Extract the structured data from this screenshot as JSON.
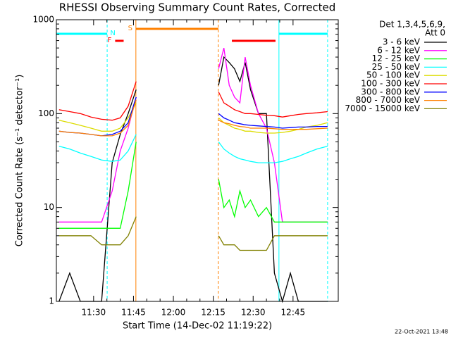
{
  "chart_data": {
    "type": "line",
    "title": "RHESSI Observing Summary Count Rates, Corrected",
    "xlabel": "Start Time (14-Dec-02 11:19:22)",
    "ylabel": "Corrected Count Rate (s⁻¹ detector⁻¹)",
    "legend_title": [
      "Det 1,3,4,5,6,9,",
      "Att 0"
    ],
    "footer": "22-Oct-2021 13:48",
    "log_y": true,
    "xlim": [
      676,
      782
    ],
    "xticks": [
      {
        "value": 690,
        "label": "11:30"
      },
      {
        "value": 705,
        "label": "11:45"
      },
      {
        "value": 720,
        "label": "12:00"
      },
      {
        "value": 735,
        "label": "12:15"
      },
      {
        "value": 750,
        "label": "12:30"
      },
      {
        "value": 765,
        "label": "12:45"
      }
    ],
    "ylim": [
      1,
      1000
    ],
    "yticks": [
      1,
      10,
      100,
      1000
    ],
    "x": [
      677,
      681,
      685,
      689,
      693,
      697,
      700,
      703,
      706,
      720,
      737,
      739,
      741,
      743,
      745,
      747,
      749,
      752,
      755,
      758,
      761,
      764,
      767,
      770,
      774,
      778
    ],
    "series": [
      {
        "name": "3 - 6 keV",
        "color": "#000000",
        "values": [
          1,
          2,
          1,
          1,
          1,
          30,
          60,
          100,
          180,
          null,
          200,
          400,
          350,
          300,
          220,
          350,
          180,
          100,
          100,
          2,
          1,
          2,
          1,
          1,
          1,
          1
        ]
      },
      {
        "name": "6 - 12 keV",
        "color": "#ff00ff",
        "values": [
          7,
          7,
          7,
          7,
          7,
          15,
          40,
          70,
          150,
          null,
          300,
          500,
          200,
          150,
          130,
          400,
          200,
          100,
          70,
          30,
          7,
          7,
          7,
          7,
          7,
          7
        ]
      },
      {
        "name": "12 - 25 keV",
        "color": "#00ff00",
        "values": [
          6,
          6,
          6,
          6,
          6,
          6,
          6,
          15,
          50,
          null,
          20,
          10,
          12,
          8,
          15,
          10,
          12,
          8,
          10,
          7,
          7,
          7,
          7,
          7,
          7,
          7
        ]
      },
      {
        "name": "25 - 50 keV",
        "color": "#00ffff",
        "values": [
          45,
          42,
          38,
          35,
          32,
          31,
          32,
          40,
          60,
          null,
          50,
          42,
          38,
          35,
          33,
          32,
          31,
          30,
          30,
          30,
          31,
          33,
          35,
          38,
          42,
          45
        ]
      },
      {
        "name": "50 - 100 keV",
        "color": "#dcdc00",
        "values": [
          85,
          80,
          75,
          70,
          65,
          65,
          70,
          90,
          130,
          null,
          90,
          80,
          75,
          70,
          68,
          65,
          65,
          63,
          62,
          62,
          63,
          65,
          68,
          72,
          75,
          80
        ]
      },
      {
        "name": "100 - 300 keV",
        "color": "#ff0000",
        "values": [
          110,
          105,
          100,
          92,
          87,
          85,
          90,
          120,
          220,
          null,
          170,
          130,
          120,
          110,
          105,
          100,
          100,
          98,
          96,
          95,
          92,
          95,
          98,
          100,
          102,
          105
        ]
      },
      {
        "name": "300 - 800 keV",
        "color": "#0000ff",
        "values": [
          65,
          63,
          62,
          60,
          58,
          60,
          65,
          80,
          150,
          null,
          100,
          90,
          85,
          80,
          78,
          76,
          75,
          74,
          73,
          72,
          70,
          71,
          72,
          72,
          73,
          73
        ]
      },
      {
        "name": "800 - 7000 keV",
        "color": "#ff8000",
        "values": [
          65,
          63,
          62,
          60,
          58,
          58,
          62,
          75,
          140,
          null,
          85,
          80,
          78,
          75,
          73,
          72,
          70,
          70,
          70,
          69,
          68,
          68,
          68,
          68,
          69,
          70
        ]
      },
      {
        "name": "7000 - 15000 keV",
        "color": "#808000",
        "values": [
          5,
          5,
          5,
          5,
          4,
          4,
          4,
          5,
          8,
          null,
          5,
          4,
          4,
          4,
          3.5,
          3.5,
          3.5,
          3.5,
          3.5,
          5,
          5,
          5,
          5,
          5,
          5,
          5
        ]
      }
    ],
    "markers": [
      {
        "x": 676,
        "color": "#00ffff",
        "dashed": false
      },
      {
        "x": 695.1,
        "color": "#00ffff",
        "dashed": true
      },
      {
        "x": 705.9,
        "color": "#ff8000",
        "dashed": false
      },
      {
        "x": 736.9,
        "color": "#ff8000",
        "dashed": true
      },
      {
        "x": 759.7,
        "color": "#00ffff",
        "dashed": false
      },
      {
        "x": 778,
        "color": "#00ffff",
        "dashed": true
      }
    ],
    "flags": [
      {
        "label": "N",
        "color": "#00ffff",
        "intervals": [
          [
            676,
            695.1
          ],
          [
            759.7,
            778
          ]
        ]
      },
      {
        "label": "S",
        "color": "#ff8000",
        "intervals": [
          [
            705.9,
            736.9
          ]
        ]
      },
      {
        "label": "F",
        "color": "#ff0000",
        "intervals": [
          [
            698.1,
            701.3
          ],
          [
            742,
            758.4
          ]
        ]
      }
    ]
  }
}
